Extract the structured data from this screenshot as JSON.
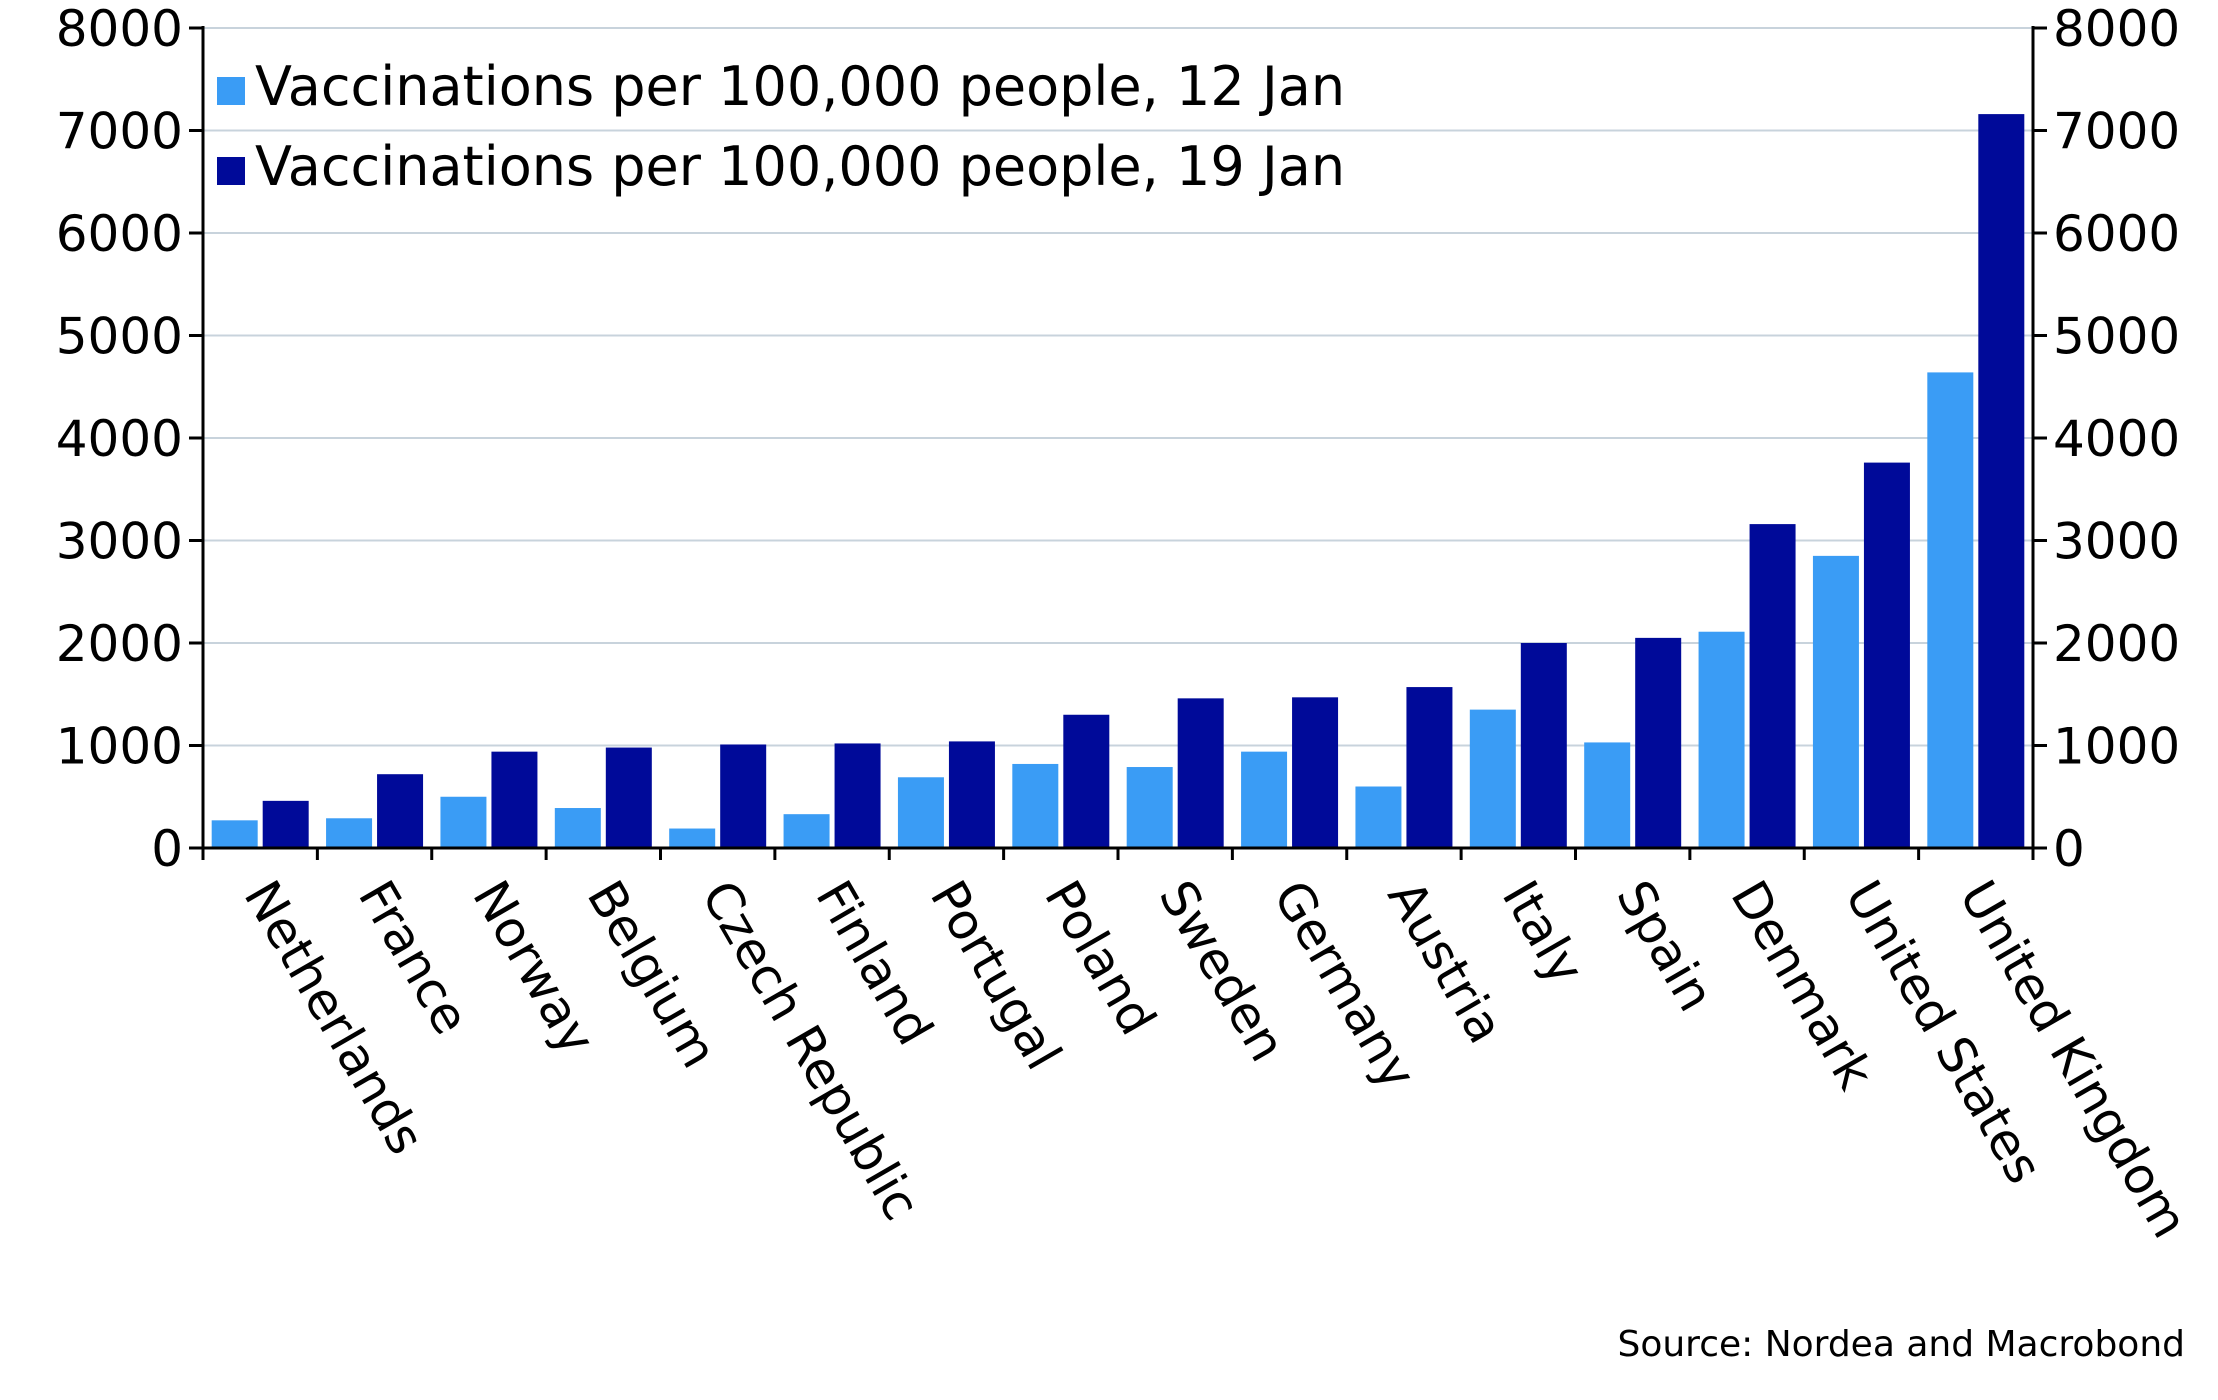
{
  "chart_data": {
    "type": "bar",
    "categories": [
      "Netherlands",
      "France",
      "Norway",
      "Belgium",
      "Czech Republic",
      "Finland",
      "Portugal",
      "Poland",
      "Sweden",
      "Germany",
      "Austria",
      "Italy",
      "Spain",
      "Denmark",
      "United States",
      "United Kingdom"
    ],
    "series": [
      {
        "name": "Vaccinations per 100,000 people, 12 Jan",
        "color": "#3a9cf5",
        "values": [
          270,
          290,
          500,
          390,
          190,
          330,
          690,
          820,
          790,
          940,
          600,
          1350,
          1030,
          2110,
          2850,
          4640
        ]
      },
      {
        "name": "Vaccinations per 100,000 people, 19 Jan",
        "color": "#000a99",
        "values": [
          460,
          720,
          940,
          980,
          1010,
          1020,
          1040,
          1300,
          1460,
          1470,
          1570,
          2000,
          2050,
          3160,
          3760,
          7160
        ]
      }
    ],
    "ylim": [
      0,
      8000
    ],
    "yticks": [
      0,
      1000,
      2000,
      3000,
      4000,
      5000,
      6000,
      7000,
      8000
    ],
    "ytick_labels": [
      "0",
      "1000",
      "2000",
      "3000",
      "4000",
      "5000",
      "6000",
      "7000",
      "8000"
    ],
    "dual_y_axis": true,
    "grid": true,
    "legend_position": "top-left",
    "source": "Source: Nordea and Macrobond",
    "title": "",
    "xlabel": "",
    "ylabel": ""
  }
}
